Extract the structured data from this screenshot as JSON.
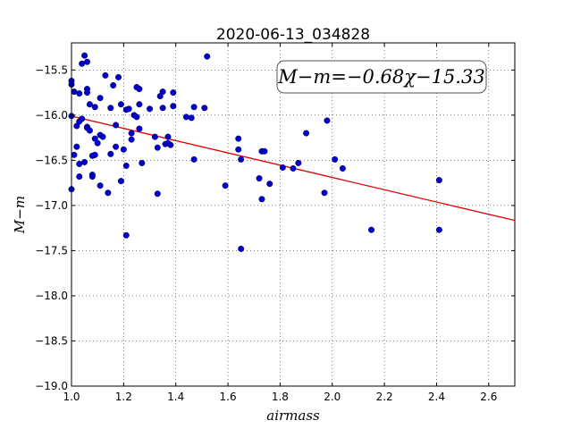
{
  "chart_data": {
    "type": "scatter",
    "title": "2020-06-13_034828",
    "xlabel": "airmass",
    "ylabel": "M−m",
    "xlim": [
      1.0,
      2.7
    ],
    "ylim": [
      -19.0,
      -15.2
    ],
    "x_ticks": [
      "1.0",
      "1.2",
      "1.4",
      "1.6",
      "1.8",
      "2.0",
      "2.2",
      "2.4",
      "2.6"
    ],
    "y_ticks": [
      "−15.5",
      "−16.0",
      "−16.5",
      "−17.0",
      "−17.5",
      "−18.0",
      "−18.5",
      "−19.0"
    ],
    "grid": true,
    "annotation": "M−m=−0.68χ−15.33",
    "fit": {
      "slope": -0.68,
      "intercept": -15.33,
      "color": "#dd0000"
    },
    "marker_color": "#0000cc",
    "points": [
      [
        1.0,
        -15.62
      ],
      [
        1.0,
        -15.66
      ],
      [
        1.0,
        -16.01
      ],
      [
        1.0,
        -16.82
      ],
      [
        1.01,
        -15.74
      ],
      [
        1.01,
        -16.44
      ],
      [
        1.02,
        -16.12
      ],
      [
        1.02,
        -16.35
      ],
      [
        1.03,
        -15.76
      ],
      [
        1.03,
        -16.07
      ],
      [
        1.03,
        -16.54
      ],
      [
        1.03,
        -16.68
      ],
      [
        1.04,
        -15.43
      ],
      [
        1.04,
        -16.04
      ],
      [
        1.05,
        -15.34
      ],
      [
        1.05,
        -16.52
      ],
      [
        1.06,
        -15.41
      ],
      [
        1.06,
        -15.71
      ],
      [
        1.06,
        -16.13
      ],
      [
        1.06,
        -16.14
      ],
      [
        1.06,
        -15.75
      ],
      [
        1.07,
        -15.88
      ],
      [
        1.07,
        -16.17
      ],
      [
        1.08,
        -16.45
      ],
      [
        1.08,
        -16.66
      ],
      [
        1.08,
        -16.68
      ],
      [
        1.09,
        -15.91
      ],
      [
        1.09,
        -16.26
      ],
      [
        1.09,
        -16.44
      ],
      [
        1.1,
        -16.31
      ],
      [
        1.11,
        -15.81
      ],
      [
        1.11,
        -16.22
      ],
      [
        1.11,
        -16.78
      ],
      [
        1.12,
        -16.24
      ],
      [
        1.13,
        -15.56
      ],
      [
        1.14,
        -16.86
      ],
      [
        1.15,
        -15.92
      ],
      [
        1.15,
        -16.43
      ],
      [
        1.16,
        -15.67
      ],
      [
        1.17,
        -16.11
      ],
      [
        1.17,
        -16.35
      ],
      [
        1.18,
        -15.58
      ],
      [
        1.19,
        -15.88
      ],
      [
        1.19,
        -16.73
      ],
      [
        1.2,
        -16.38
      ],
      [
        1.21,
        -15.94
      ],
      [
        1.21,
        -16.56
      ],
      [
        1.21,
        -17.33
      ],
      [
        1.22,
        -15.93
      ],
      [
        1.23,
        -16.2
      ],
      [
        1.23,
        -16.27
      ],
      [
        1.24,
        -16.0
      ],
      [
        1.25,
        -16.02
      ],
      [
        1.25,
        -15.69
      ],
      [
        1.26,
        -15.71
      ],
      [
        1.26,
        -15.88
      ],
      [
        1.26,
        -16.15
      ],
      [
        1.27,
        -16.53
      ],
      [
        1.3,
        -15.93
      ],
      [
        1.32,
        -16.24
      ],
      [
        1.33,
        -16.36
      ],
      [
        1.33,
        -16.87
      ],
      [
        1.34,
        -15.79
      ],
      [
        1.35,
        -15.74
      ],
      [
        1.35,
        -15.92
      ],
      [
        1.36,
        -16.32
      ],
      [
        1.37,
        -16.24
      ],
      [
        1.37,
        -16.31
      ],
      [
        1.38,
        -16.33
      ],
      [
        1.39,
        -15.75
      ],
      [
        1.39,
        -15.9
      ],
      [
        1.44,
        -16.02
      ],
      [
        1.46,
        -16.03
      ],
      [
        1.47,
        -15.91
      ],
      [
        1.47,
        -16.49
      ],
      [
        1.51,
        -15.92
      ],
      [
        1.52,
        -15.35
      ],
      [
        1.59,
        -16.78
      ],
      [
        1.64,
        -16.26
      ],
      [
        1.64,
        -16.38
      ],
      [
        1.65,
        -16.49
      ],
      [
        1.65,
        -17.48
      ],
      [
        1.72,
        -16.7
      ],
      [
        1.73,
        -16.93
      ],
      [
        1.73,
        -16.4
      ],
      [
        1.74,
        -16.4
      ],
      [
        1.76,
        -16.76
      ],
      [
        1.81,
        -16.58
      ],
      [
        1.85,
        -16.59
      ],
      [
        1.87,
        -16.53
      ],
      [
        1.9,
        -16.2
      ],
      [
        1.97,
        -16.86
      ],
      [
        1.98,
        -16.06
      ],
      [
        2.01,
        -16.49
      ],
      [
        2.04,
        -16.59
      ],
      [
        2.15,
        -17.27
      ],
      [
        2.41,
        -16.72
      ],
      [
        2.41,
        -17.27
      ]
    ]
  }
}
